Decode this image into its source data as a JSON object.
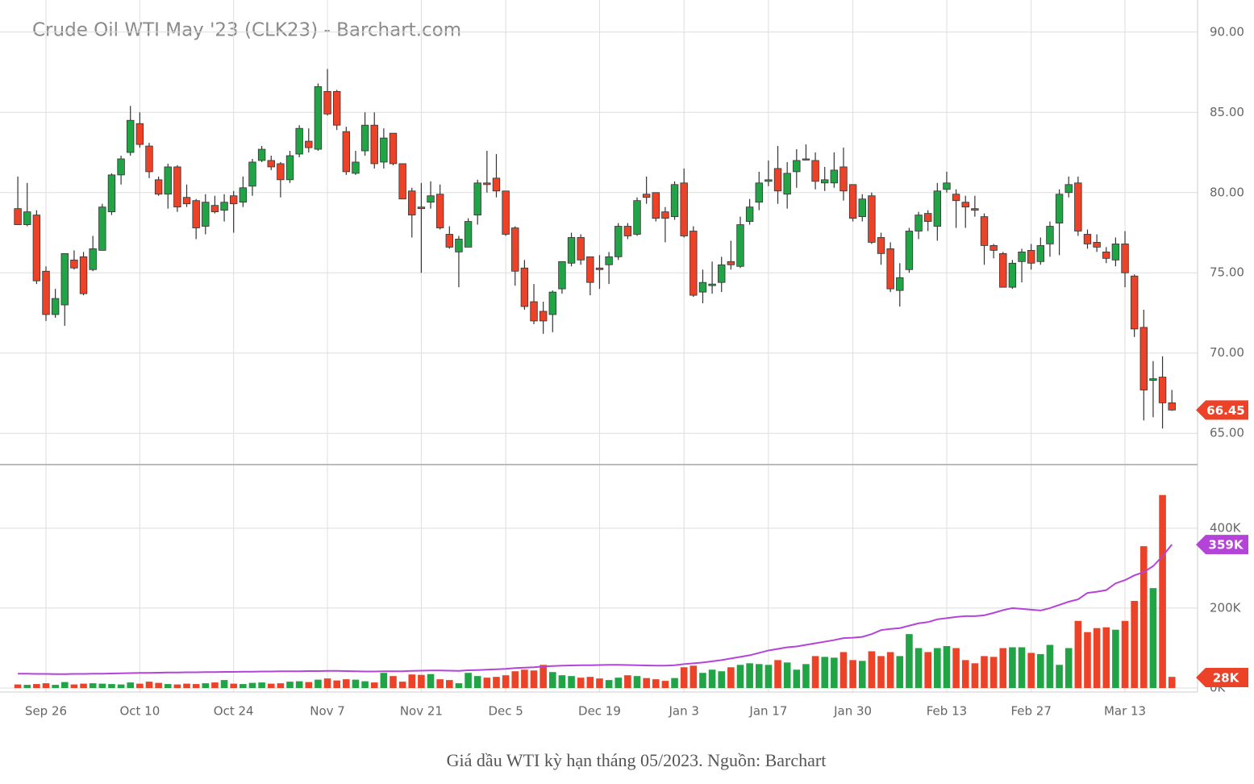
{
  "chart_data": {
    "type": "candlestick",
    "title": "Crude Oil WTI May '23 (CLK23) - Barchart.com",
    "categories": [
      null,
      null,
      null,
      "Sep 26",
      null,
      null,
      null,
      null,
      null,
      null,
      null,
      null,
      null,
      "Oct 10",
      null,
      null,
      null,
      null,
      null,
      null,
      null,
      null,
      null,
      "Oct 24",
      null,
      null,
      null,
      null,
      null,
      null,
      null,
      null,
      null,
      "Nov 7",
      null,
      null,
      null,
      null,
      null,
      null,
      null,
      null,
      null,
      "Nov 21",
      null,
      null,
      null,
      null,
      null,
      null,
      null,
      null,
      "Dec 5",
      null,
      null,
      null,
      null,
      null,
      null,
      null,
      null,
      null,
      "Dec 19",
      null,
      null,
      null,
      null,
      null,
      null,
      null,
      null,
      "Jan 3",
      null,
      null,
      null,
      null,
      null,
      null,
      null,
      null,
      "Jan 17",
      null,
      null,
      null,
      null,
      null,
      null,
      null,
      null,
      "Jan 30",
      null,
      null,
      null,
      null,
      null,
      null,
      null,
      null,
      null,
      "Feb 13",
      null,
      null,
      null,
      null,
      null,
      null,
      null,
      null,
      "Feb 27",
      null,
      null,
      null,
      null,
      null,
      null,
      null,
      null,
      null,
      "Mar 13",
      null,
      null,
      null,
      null,
      null
    ],
    "open": [
      79.0,
      78.0,
      78.6,
      75.1,
      72.4,
      73.0,
      75.8,
      76.0,
      75.2,
      76.4,
      78.8,
      81.1,
      82.5,
      84.3,
      82.9,
      80.8,
      79.9,
      81.6,
      79.7,
      79.5,
      77.9,
      79.2,
      78.9,
      79.8,
      79.4,
      80.4,
      82.0,
      82.0,
      81.8,
      80.8,
      82.4,
      83.2,
      82.7,
      86.3,
      86.3,
      83.8,
      81.2,
      82.6,
      84.2,
      81.9,
      83.7,
      81.8,
      80.1,
      79.1,
      79.4,
      79.9,
      77.4,
      76.3,
      76.6,
      78.6,
      80.6,
      80.9,
      80.1,
      77.8,
      75.3,
      73.2,
      72.6,
      72.4,
      74.0,
      75.6,
      77.2,
      76.0,
      75.3,
      75.5,
      76.0,
      77.9,
      77.4,
      79.9,
      80.0,
      78.8,
      78.5,
      80.6,
      77.6,
      73.8,
      74.2,
      74.4,
      75.7,
      75.4,
      78.2,
      79.4,
      80.7,
      81.5,
      79.9,
      81.3,
      82.1,
      82.0,
      80.6,
      80.6,
      81.6,
      80.5,
      78.5,
      79.8,
      77.2,
      76.5,
      73.9,
      75.2,
      77.6,
      78.7,
      77.9,
      80.2,
      79.9,
      79.4,
      79.0,
      78.5,
      76.7,
      76.2,
      74.1,
      75.7,
      76.4,
      75.7,
      76.8,
      78.1,
      80.0,
      80.6,
      77.4,
      76.9,
      76.3,
      75.8,
      76.8,
      74.8,
      71.6,
      68.3,
      68.5,
      66.9
    ],
    "high": [
      81.0,
      80.6,
      78.9,
      75.4,
      74.0,
      76.2,
      76.4,
      76.3,
      77.3,
      79.3,
      81.2,
      82.3,
      85.4,
      85.0,
      83.1,
      81.0,
      81.8,
      81.7,
      80.5,
      79.6,
      79.9,
      79.8,
      79.9,
      80.1,
      81.0,
      82.1,
      82.9,
      82.3,
      81.9,
      82.6,
      84.2,
      84.0,
      86.8,
      87.7,
      86.4,
      84.1,
      82.6,
      85.0,
      85.0,
      84.0,
      83.7,
      81.8,
      80.3,
      80.6,
      80.7,
      80.5,
      77.9,
      77.3,
      78.4,
      80.8,
      82.6,
      82.4,
      80.1,
      77.9,
      75.8,
      74.3,
      73.2,
      73.9,
      75.7,
      77.5,
      77.4,
      76.0,
      76.1,
      76.3,
      78.1,
      78.1,
      79.7,
      81.0,
      80.0,
      79.1,
      80.7,
      81.5,
      77.9,
      75.2,
      75.7,
      76.0,
      77.0,
      78.5,
      79.6,
      81.3,
      82.0,
      82.9,
      81.9,
      82.7,
      83.0,
      82.5,
      81.6,
      82.5,
      82.8,
      80.5,
      79.9,
      80.0,
      77.5,
      76.9,
      75.6,
      77.8,
      78.8,
      78.9,
      80.6,
      81.3,
      80.2,
      79.8,
      79.8,
      78.7,
      76.8,
      76.3,
      75.8,
      76.5,
      76.8,
      77.2,
      78.2,
      80.2,
      81.0,
      81.0,
      77.7,
      77.4,
      76.6,
      77.2,
      77.6,
      74.9,
      72.7,
      69.5,
      69.8,
      67.7
    ],
    "low": [
      78.0,
      77.9,
      74.3,
      72.0,
      72.2,
      71.7,
      75.2,
      73.6,
      75.1,
      76.4,
      78.6,
      80.5,
      82.3,
      82.8,
      80.9,
      79.8,
      79.0,
      78.8,
      79.1,
      77.1,
      77.4,
      78.7,
      78.2,
      77.5,
      79.1,
      79.8,
      81.9,
      81.4,
      79.7,
      80.6,
      82.2,
      82.5,
      82.6,
      84.8,
      83.9,
      81.1,
      81.1,
      82.3,
      81.5,
      81.5,
      81.7,
      79.6,
      77.2,
      75.0,
      79.0,
      77.7,
      76.5,
      74.1,
      76.6,
      78.0,
      80.0,
      79.7,
      77.3,
      74.2,
      72.7,
      71.8,
      71.2,
      71.3,
      73.7,
      75.4,
      75.5,
      73.6,
      74.0,
      74.3,
      75.8,
      77.1,
      77.3,
      79.3,
      78.2,
      76.9,
      78.3,
      77.2,
      73.5,
      73.1,
      73.7,
      73.8,
      75.2,
      75.3,
      78.0,
      78.9,
      80.4,
      79.3,
      79.0,
      80.3,
      82.0,
      80.2,
      80.1,
      80.3,
      79.5,
      78.2,
      78.2,
      76.8,
      75.5,
      73.8,
      72.9,
      75.0,
      77.1,
      77.6,
      77.0,
      80.0,
      77.8,
      77.8,
      78.5,
      75.5,
      75.9,
      74.1,
      74.0,
      74.4,
      75.2,
      75.5,
      76.0,
      76.1,
      79.7,
      77.3,
      76.5,
      76.3,
      75.6,
      75.4,
      74.1,
      71.0,
      65.8,
      66.0,
      65.3,
      66.4
    ],
    "close": [
      78.0,
      78.8,
      74.5,
      72.4,
      73.4,
      76.2,
      75.3,
      73.7,
      76.5,
      79.1,
      81.1,
      82.1,
      84.5,
      83.0,
      81.3,
      79.9,
      81.6,
      79.1,
      79.3,
      77.8,
      79.4,
      78.8,
      79.4,
      79.3,
      80.3,
      81.9,
      82.7,
      81.6,
      80.8,
      82.3,
      84.0,
      82.8,
      86.6,
      84.9,
      84.2,
      81.3,
      81.9,
      84.2,
      81.8,
      83.4,
      81.8,
      79.6,
      78.6,
      79.0,
      79.8,
      77.8,
      76.6,
      77.1,
      78.2,
      80.6,
      80.5,
      80.1,
      77.4,
      75.1,
      72.9,
      72.0,
      72.0,
      73.8,
      75.7,
      77.2,
      75.8,
      74.4,
      75.2,
      76.0,
      77.9,
      77.3,
      79.5,
      79.7,
      78.4,
      78.4,
      80.5,
      77.3,
      73.6,
      74.4,
      74.3,
      75.5,
      75.5,
      78.0,
      79.1,
      80.6,
      80.8,
      80.1,
      81.2,
      82.0,
      82.1,
      80.7,
      80.8,
      81.4,
      80.1,
      78.4,
      79.6,
      76.9,
      76.2,
      74.0,
      74.7,
      77.6,
      78.6,
      78.2,
      80.1,
      80.6,
      79.5,
      79.1,
      78.9,
      76.7,
      76.4,
      74.1,
      75.6,
      76.3,
      75.6,
      76.7,
      77.9,
      79.9,
      80.5,
      77.6,
      76.8,
      76.6,
      75.9,
      76.8,
      75.0,
      71.5,
      67.7,
      68.4,
      66.9,
      66.45
    ],
    "up_color": "#20a446",
    "down_color": "#ec4228",
    "ylim": [
      63.1,
      92.0
    ],
    "yticks": [
      {
        "value": 65,
        "label": "65.00"
      },
      {
        "value": 70,
        "label": "70.00"
      },
      {
        "value": 75,
        "label": "75.00"
      },
      {
        "value": 80,
        "label": "80.00"
      },
      {
        "value": 85,
        "label": "85.00"
      },
      {
        "value": 90,
        "label": "90.00"
      }
    ],
    "grid": true,
    "volume": {
      "values": [
        9000,
        8000,
        10000,
        12000,
        8000,
        15000,
        9000,
        11000,
        12000,
        11000,
        10000,
        9000,
        14000,
        11000,
        16000,
        13000,
        10000,
        9000,
        11000,
        10000,
        12000,
        14000,
        20000,
        11000,
        10000,
        13000,
        14000,
        11000,
        12000,
        16000,
        17000,
        15000,
        21000,
        24000,
        19000,
        22000,
        21000,
        17000,
        14000,
        38000,
        30000,
        16000,
        34000,
        33000,
        35000,
        22000,
        20000,
        12000,
        38000,
        30000,
        26000,
        28000,
        32000,
        42000,
        46000,
        44000,
        58000,
        40000,
        32000,
        30000,
        26000,
        28000,
        24000,
        20000,
        26000,
        32000,
        30000,
        25000,
        22000,
        18000,
        25000,
        52000,
        56000,
        38000,
        46000,
        42000,
        52000,
        58000,
        62000,
        60000,
        58000,
        70000,
        64000,
        46000,
        60000,
        80000,
        78000,
        76000,
        90000,
        70000,
        68000,
        92000,
        80000,
        90000,
        80000,
        135000,
        100000,
        90000,
        100000,
        105000,
        100000,
        70000,
        62000,
        80000,
        78000,
        100000,
        102000,
        102000,
        88000,
        85000,
        108000,
        58000,
        100000,
        168000,
        140000,
        150000,
        152000,
        146000,
        168000,
        218000,
        355000,
        250000,
        483000,
        28000
      ],
      "ylim": [
        -10000,
        551000
      ],
      "yticks": [
        {
          "value": 0,
          "label": "0K"
        },
        {
          "value": 200000,
          "label": "200K"
        },
        {
          "value": 400000,
          "label": "400K"
        }
      ],
      "last_label": "28K"
    },
    "volume_ma": {
      "color": "#b444d8",
      "values": [
        36000,
        36000,
        35500,
        35500,
        35000,
        35000,
        35500,
        35500,
        36000,
        36000,
        36500,
        37000,
        37500,
        38000,
        38000,
        38500,
        39000,
        39000,
        39500,
        39500,
        40000,
        40000,
        40500,
        40500,
        41000,
        41000,
        41500,
        41500,
        42000,
        42000,
        42000,
        42500,
        42500,
        43000,
        43000,
        42500,
        42000,
        41500,
        41500,
        42000,
        42000,
        42000,
        43000,
        43500,
        44000,
        44000,
        43500,
        43000,
        44500,
        45000,
        46000,
        47000,
        48000,
        50000,
        51000,
        52000,
        54000,
        55000,
        56000,
        56500,
        57000,
        57000,
        57500,
        58000,
        58000,
        57500,
        57000,
        56500,
        56000,
        56000,
        57000,
        60000,
        62000,
        64000,
        67000,
        70000,
        74000,
        78000,
        82000,
        88000,
        94000,
        98000,
        102000,
        104000,
        108000,
        112000,
        116000,
        120000,
        125000,
        126000,
        128000,
        135000,
        145000,
        148000,
        150000,
        156000,
        162000,
        165000,
        172000,
        175000,
        178000,
        180000,
        180000,
        182000,
        188000,
        195000,
        200000,
        198000,
        196000,
        194000,
        200000,
        208000,
        216000,
        222000,
        238000,
        241000,
        245000,
        262000,
        270000,
        282000,
        290000,
        305000,
        330000,
        359000
      ],
      "last_label": "359K"
    }
  },
  "caption": "Giá dầu WTI kỳ hạn tháng 05/2023. Nguồn: Barchart"
}
